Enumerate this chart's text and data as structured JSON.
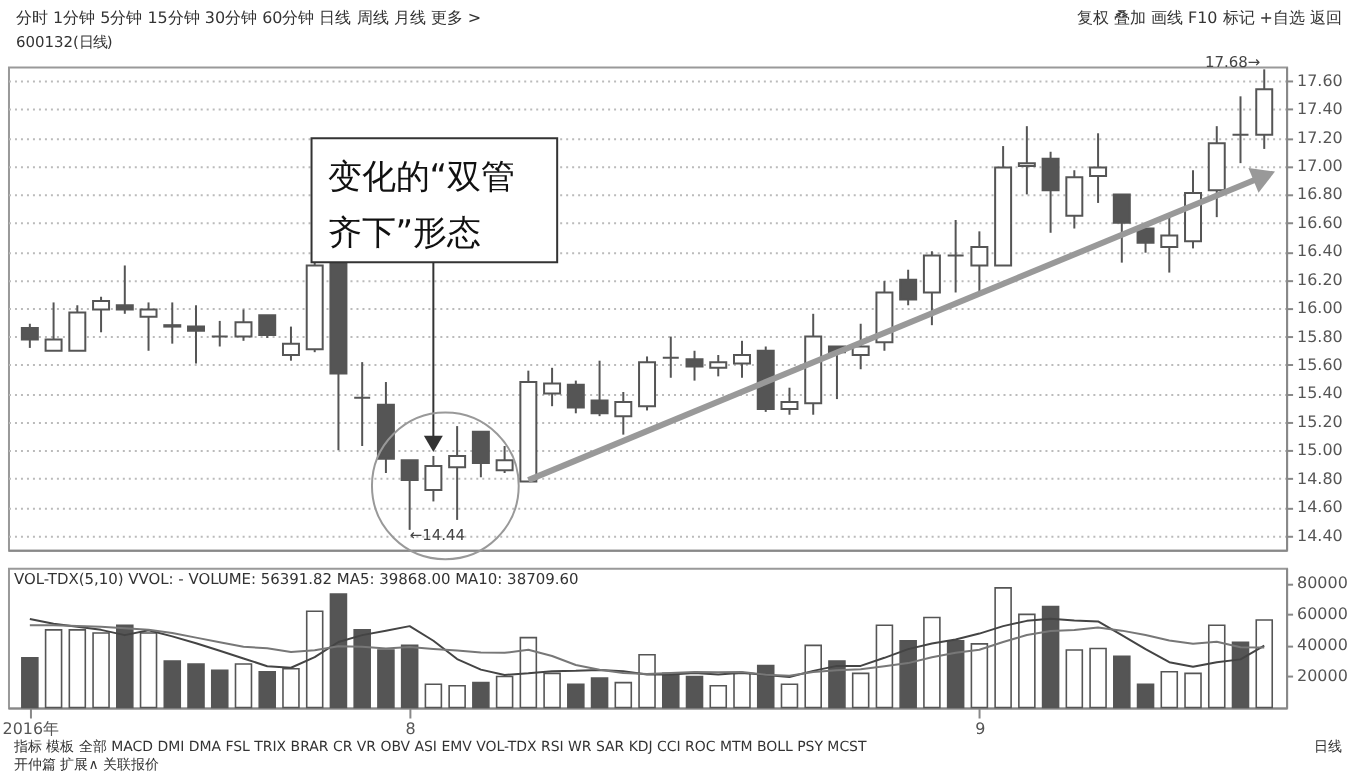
{
  "chart_data": [
    {
      "type": "candlestick",
      "title": "600132(日线)",
      "categories": [
        null,
        null,
        null,
        null,
        null,
        null,
        null,
        null,
        null,
        null,
        null,
        null,
        null,
        null,
        null,
        null,
        null,
        null,
        null,
        null,
        null,
        null,
        null,
        null,
        null,
        null,
        null,
        null,
        null,
        null,
        null,
        null,
        null,
        null,
        null,
        null,
        null,
        null,
        null,
        null,
        null,
        null,
        null,
        null,
        null,
        null,
        null,
        null,
        null,
        null,
        null,
        null,
        null
      ],
      "ohlc": [
        [
          15.86,
          15.89,
          15.72,
          15.78
        ],
        [
          15.7,
          16.04,
          15.7,
          15.78
        ],
        [
          15.7,
          16.02,
          15.7,
          15.97
        ],
        [
          15.99,
          16.08,
          15.83,
          16.05
        ],
        [
          16.02,
          16.3,
          15.96,
          15.99
        ],
        [
          15.94,
          16.04,
          15.7,
          15.99
        ],
        [
          15.88,
          16.04,
          15.75,
          15.87
        ],
        [
          15.87,
          16.02,
          15.61,
          15.84
        ],
        [
          15.8,
          15.91,
          15.73,
          15.8
        ],
        [
          15.8,
          15.99,
          15.77,
          15.9
        ],
        [
          15.95,
          15.95,
          15.79,
          15.81
        ],
        [
          15.67,
          15.87,
          15.63,
          15.75
        ],
        [
          15.71,
          16.33,
          15.69,
          16.3
        ],
        [
          16.33,
          16.35,
          15.0,
          15.54
        ],
        [
          15.37,
          15.62,
          15.03,
          15.37
        ],
        [
          15.32,
          15.48,
          14.84,
          14.94
        ],
        [
          14.93,
          14.93,
          14.44,
          14.79
        ],
        [
          14.72,
          14.96,
          14.64,
          14.89
        ],
        [
          14.88,
          15.17,
          14.51,
          14.96
        ],
        [
          15.13,
          15.13,
          14.81,
          14.91
        ],
        [
          14.86,
          15.03,
          14.84,
          14.93
        ],
        [
          14.78,
          15.56,
          14.78,
          15.48
        ],
        [
          15.4,
          15.58,
          15.31,
          15.47
        ],
        [
          15.46,
          15.49,
          15.26,
          15.3
        ],
        [
          15.35,
          15.63,
          15.24,
          15.26
        ],
        [
          15.24,
          15.41,
          15.11,
          15.34
        ],
        [
          15.31,
          15.66,
          15.28,
          15.62
        ],
        [
          15.65,
          15.8,
          15.51,
          15.65
        ],
        [
          15.64,
          15.7,
          15.49,
          15.59
        ],
        [
          15.58,
          15.67,
          15.52,
          15.62
        ],
        [
          15.61,
          15.77,
          15.51,
          15.67
        ],
        [
          15.7,
          15.73,
          15.27,
          15.29
        ],
        [
          15.29,
          15.44,
          15.25,
          15.34
        ],
        [
          15.33,
          15.96,
          15.25,
          15.8
        ],
        [
          15.73,
          15.73,
          15.36,
          15.69
        ],
        [
          15.67,
          15.89,
          15.57,
          15.73
        ],
        [
          15.76,
          16.19,
          15.7,
          16.11
        ],
        [
          16.2,
          16.27,
          16.02,
          16.06
        ],
        [
          16.11,
          16.4,
          15.88,
          16.37
        ],
        [
          16.37,
          16.62,
          16.11,
          16.37
        ],
        [
          16.3,
          16.54,
          16.11,
          16.43
        ],
        [
          16.3,
          17.14,
          16.3,
          16.99
        ],
        [
          17.0,
          17.28,
          16.8,
          17.02
        ],
        [
          17.05,
          17.1,
          16.53,
          16.83
        ],
        [
          16.65,
          16.97,
          16.56,
          16.92
        ],
        [
          16.93,
          17.23,
          16.74,
          16.99
        ],
        [
          16.8,
          16.8,
          16.32,
          16.6
        ],
        [
          16.56,
          16.56,
          16.39,
          16.46
        ],
        [
          16.43,
          16.66,
          16.25,
          16.51
        ],
        [
          16.47,
          16.97,
          16.42,
          16.81
        ],
        [
          16.83,
          17.28,
          16.64,
          17.16
        ],
        [
          17.22,
          17.49,
          17.02,
          17.22
        ],
        [
          17.22,
          17.68,
          17.12,
          17.54
        ]
      ],
      "series": [
        {
          "type": "line",
          "color": "#999999",
          "values": [
            null,
            null,
            null,
            null,
            null,
            null,
            null,
            null,
            null,
            null,
            null,
            null,
            null,
            null,
            null,
            null,
            null,
            null,
            null,
            null,
            null,
            14.79,
            null,
            null,
            null,
            null,
            null,
            null,
            null,
            null,
            null,
            null,
            null,
            null,
            null,
            null,
            null,
            null,
            null,
            null,
            null,
            null,
            null,
            null,
            null,
            null,
            null,
            null,
            null,
            null,
            null,
            null,
            16.93
          ]
        }
      ],
      "ylim": [
        14.3,
        17.7
      ],
      "yticks": [
        {
          "value": 14.4,
          "label": "14.40"
        },
        {
          "value": 14.6,
          "label": "14.60"
        },
        {
          "value": 14.8,
          "label": "14.80"
        },
        {
          "value": 15.0,
          "label": "15.00"
        },
        {
          "value": 15.2,
          "label": "15.20"
        },
        {
          "value": 15.4,
          "label": "15.40"
        },
        {
          "value": 15.6,
          "label": "15.60"
        },
        {
          "value": 15.8,
          "label": "15.80"
        },
        {
          "value": 16.0,
          "label": "16.00"
        },
        {
          "value": 16.2,
          "label": "16.20"
        },
        {
          "value": 16.4,
          "label": "16.40"
        },
        {
          "value": 16.6,
          "label": "16.60"
        },
        {
          "value": 16.8,
          "label": "16.80"
        },
        {
          "value": 17.0,
          "label": "17.00"
        },
        {
          "value": 17.2,
          "label": "17.20"
        },
        {
          "value": 17.4,
          "label": "17.40"
        },
        {
          "value": 17.6,
          "label": "17.60"
        }
      ],
      "grid": "y",
      "tick_labels": "y",
      "legend": false,
      "annotations": [
        "分时  1分钟  5分钟  15分钟  30分钟  60分钟  日线  周线  月线  更多 >",
        "复权  叠加  画线  F10  标记  +自选  返回",
        "变化的“双管齐下”形态",
        "17.68→",
        "←14.44"
      ]
    },
    {
      "type": "bar",
      "title": "VOL-TDX(5,10) VVOL: -  VOLUME: 56391.82  MA5: 39868.00  MA10: 38709.60",
      "categories": [
        "2016年",
        null,
        null,
        null,
        null,
        null,
        null,
        null,
        null,
        null,
        null,
        null,
        null,
        null,
        null,
        null,
        "8",
        null,
        null,
        null,
        null,
        null,
        null,
        null,
        null,
        null,
        null,
        null,
        null,
        null,
        null,
        null,
        null,
        null,
        null,
        null,
        null,
        null,
        null,
        null,
        "9",
        null,
        null,
        null,
        null,
        null,
        null,
        null,
        null,
        null,
        null,
        null,
        null
      ],
      "series": [
        {
          "values": [
            32000,
            50000,
            50000,
            48000,
            53000,
            48000,
            30000,
            28000,
            24000,
            28000,
            23000,
            25000,
            62000,
            73000,
            50000,
            37000,
            40000,
            15000,
            14000,
            16000,
            20000,
            45000,
            22000,
            15000,
            19000,
            16000,
            34000,
            22000,
            20000,
            14000,
            22000,
            27000,
            15000,
            40000,
            30000,
            22000,
            53000,
            43000,
            58000,
            43000,
            41000,
            77000,
            60000,
            65000,
            37000,
            38000,
            33000,
            15000,
            23000,
            22000,
            53000,
            42000,
            56391.82
          ],
          "colors": [
            "#555555",
            "#ffffff",
            "#ffffff",
            "#ffffff",
            "#555555",
            "#ffffff",
            "#555555",
            "#555555",
            "#555555",
            "#ffffff",
            "#555555",
            "#ffffff",
            "#ffffff",
            "#555555",
            "#555555",
            "#555555",
            "#555555",
            "#ffffff",
            "#ffffff",
            "#555555",
            "#ffffff",
            "#ffffff",
            "#ffffff",
            "#555555",
            "#555555",
            "#ffffff",
            "#ffffff",
            "#555555",
            "#555555",
            "#ffffff",
            "#ffffff",
            "#555555",
            "#ffffff",
            "#ffffff",
            "#555555",
            "#ffffff",
            "#ffffff",
            "#555555",
            "#ffffff",
            "#555555",
            "#ffffff",
            "#ffffff",
            "#ffffff",
            "#555555",
            "#ffffff",
            "#ffffff",
            "#555555",
            "#555555",
            "#ffffff",
            "#ffffff",
            "#ffffff",
            "#555555",
            "#ffffff"
          ]
        },
        {
          "type": "line",
          "color": "#444444",
          "values": [
            57000,
            54000,
            52000,
            50000,
            46600,
            49800,
            45800,
            41400,
            36600,
            31600,
            26600,
            25600,
            32400,
            42200,
            46600,
            49400,
            52400,
            43000,
            31200,
            24400,
            21000,
            22000,
            23400,
            23600,
            24200,
            23400,
            21200,
            21200,
            22200,
            21200,
            22400,
            21000,
            19600,
            23600,
            26800,
            26800,
            32000,
            37600,
            41200,
            43800,
            47600,
            52400,
            55800,
            57200,
            56000,
            55400,
            46600,
            37600,
            29200,
            26200,
            29200,
            31000,
            39868
          ]
        },
        {
          "type": "line",
          "color": "#777777",
          "values": [
            53000,
            53000,
            52500,
            52000,
            51000,
            50000,
            48000,
            45000,
            42000,
            39100,
            38200,
            35700,
            36900,
            39400,
            39100,
            38000,
            39000,
            37700,
            36700,
            35500,
            35200,
            37200,
            33200,
            27400,
            24300,
            22200,
            21600,
            22300,
            22900,
            22700,
            22900,
            21100,
            20400,
            22900,
            24000,
            24600,
            26500,
            28600,
            32400,
            35300,
            37200,
            42200,
            46700,
            49200,
            49900,
            51500,
            49500,
            46700,
            43200,
            41100,
            42300,
            38800,
            38709.6
          ]
        }
      ],
      "ylim": [
        0,
        90000
      ],
      "yticks": [
        {
          "value": 20000,
          "label": "20000"
        },
        {
          "value": 40000,
          "label": "40000"
        },
        {
          "value": 60000,
          "label": "60000"
        },
        {
          "value": 80000,
          "label": "80000"
        }
      ],
      "grid": false,
      "legend": false,
      "annotations": [
        "日线",
        "指标  模板  全部  MACD  DMI  DMA  FSL  TRIX  BRAR  CR  VR  OBV  ASI  EMV  VOL-TDX  RSI  WR  SAR  KDJ  CCI  ROC  MTM  BOLL  PSY  MCST",
        "开仲篇  扩展∧  关联报价"
      ]
    }
  ]
}
